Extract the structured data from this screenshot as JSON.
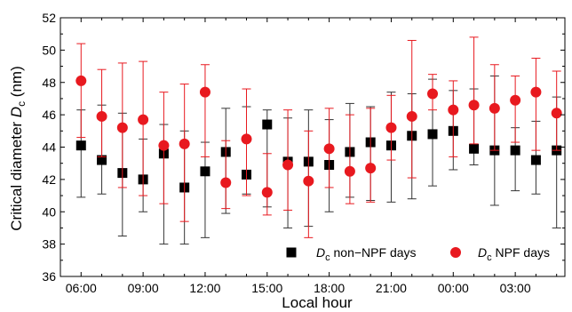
{
  "chart_data": {
    "type": "scatter",
    "title": "",
    "xlabel": "Local hour",
    "ylabel_prefix": "Critical diameter ",
    "ylabel_symbol": "D",
    "ylabel_sub": "c",
    "ylabel_suffix": " (nm)",
    "ylim": [
      36,
      52
    ],
    "yticks": [
      36,
      38,
      40,
      42,
      44,
      46,
      48,
      50,
      52
    ],
    "xlim": [
      5.0,
      29.4
    ],
    "xticks": [
      6,
      9,
      12,
      15,
      18,
      21,
      24,
      27
    ],
    "xtick_labels": [
      "06:00",
      "09:00",
      "12:00",
      "15:00",
      "18:00",
      "21:00",
      "00:00",
      "03:00"
    ],
    "legend_position": "bottom-right",
    "grid": false,
    "series": [
      {
        "symbol": "D",
        "sub": "c",
        "label": " non−NPF days",
        "marker": "square",
        "marker_color": "#000000",
        "errorbar_color": "#333333",
        "x": [
          6,
          7,
          8,
          9,
          10,
          11,
          12,
          13,
          14,
          15,
          16,
          17,
          18,
          19,
          20,
          21,
          22,
          23,
          24,
          25,
          26,
          27,
          28,
          29
        ],
        "y": [
          44.1,
          43.2,
          42.4,
          42.0,
          43.6,
          41.5,
          42.5,
          43.7,
          42.3,
          45.4,
          43.1,
          43.1,
          42.9,
          43.7,
          44.3,
          44.1,
          44.7,
          44.8,
          45.0,
          43.9,
          43.8,
          43.8,
          43.2,
          43.8
        ],
        "yerr_low": [
          40.9,
          41.1,
          38.5,
          40.0,
          38.0,
          38.0,
          38.4,
          39.9,
          41.1,
          40.3,
          39.0,
          39.1,
          40.0,
          40.9,
          40.7,
          40.6,
          40.8,
          41.6,
          42.6,
          42.9,
          40.4,
          41.3,
          41.1,
          39.0
        ],
        "yerr_high": [
          46.3,
          46.6,
          46.1,
          44.5,
          45.4,
          45.0,
          44.3,
          46.4,
          46.5,
          46.3,
          45.8,
          46.3,
          45.7,
          46.7,
          46.5,
          47.4,
          47.3,
          48.2,
          47.5,
          47.6,
          48.4,
          45.2,
          45.6,
          47.1
        ]
      },
      {
        "symbol": "D",
        "sub": "c",
        "label": " NPF days",
        "marker": "circle",
        "marker_color": "#e8191f",
        "errorbar_color": "#e8191f",
        "x": [
          6,
          7,
          8,
          9,
          10,
          11,
          12,
          13,
          14,
          15,
          16,
          17,
          18,
          19,
          20,
          21,
          22,
          23,
          24,
          25,
          26,
          27,
          28,
          29
        ],
        "y": [
          48.1,
          45.9,
          45.2,
          45.7,
          44.1,
          44.2,
          47.4,
          41.8,
          44.5,
          41.2,
          42.9,
          41.9,
          43.9,
          42.5,
          42.7,
          45.2,
          45.9,
          47.3,
          46.3,
          46.6,
          46.4,
          46.9,
          47.4,
          46.1
        ],
        "yerr_low": [
          44.6,
          43.4,
          41.5,
          41.0,
          40.5,
          39.4,
          43.4,
          40.2,
          41.0,
          39.8,
          40.1,
          38.4,
          41.5,
          40.5,
          40.6,
          43.2,
          42.1,
          46.3,
          43.4,
          44.2,
          43.8,
          44.3,
          43.8,
          43.8
        ],
        "yerr_high": [
          50.4,
          48.8,
          49.2,
          49.3,
          47.4,
          47.9,
          49.1,
          44.4,
          47.6,
          43.6,
          46.3,
          45.0,
          46.4,
          46.0,
          46.4,
          47.2,
          50.6,
          48.5,
          48.1,
          50.8,
          49.1,
          48.4,
          49.5,
          48.7
        ]
      }
    ]
  }
}
